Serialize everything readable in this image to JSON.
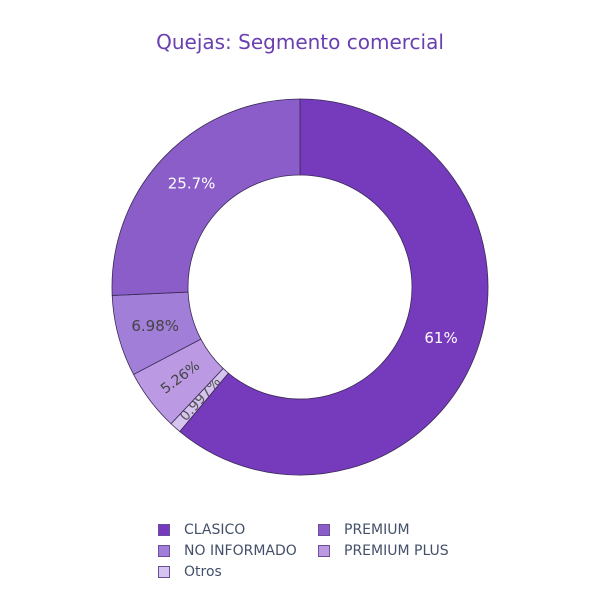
{
  "chart_data": {
    "type": "pie",
    "title": "Quejas: Segmento comercial",
    "hole": true,
    "slices": [
      {
        "label": "CLASICO",
        "value": 61.0,
        "text": "61%",
        "color": "#763abd",
        "text_color": "#ffffff"
      },
      {
        "label": "Otros",
        "value": 0.997,
        "text": "0.997%",
        "color": "#d7c3ef",
        "text_color": "#555555"
      },
      {
        "label": "PREMIUM PLUS",
        "value": 5.26,
        "text": "5.26%",
        "color": "#bb9ae3",
        "text_color": "#444444"
      },
      {
        "label": "NO INFORMADO",
        "value": 6.98,
        "text": "6.98%",
        "color": "#a17ed8",
        "text_color": "#444444"
      },
      {
        "label": "PREMIUM",
        "value": 25.7,
        "text": "25.7%",
        "color": "#8a5dc9",
        "text_color": "#ffffff"
      }
    ],
    "legend": [
      {
        "label": "CLASICO",
        "color": "#763abd"
      },
      {
        "label": "PREMIUM",
        "color": "#8a5dc9"
      },
      {
        "label": "NO INFORMADO",
        "color": "#a17ed8"
      },
      {
        "label": "PREMIUM PLUS",
        "color": "#bb9ae3"
      },
      {
        "label": "Otros",
        "color": "#d7c3ef"
      }
    ],
    "legend_position": "bottom"
  }
}
